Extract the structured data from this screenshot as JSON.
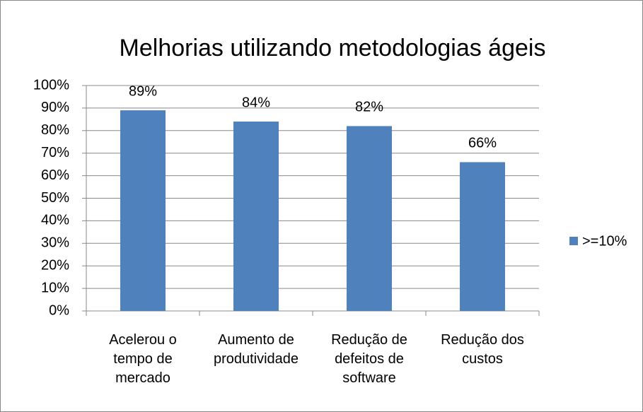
{
  "chart_data": {
    "type": "bar",
    "title": "Melhorias utilizando metodologias ágeis",
    "categories": [
      "Acelerou o tempo de mercado",
      "Aumento de produtividade",
      "Redução de defeitos de software",
      "Redução dos custos"
    ],
    "series": [
      {
        "name": ">=10%",
        "color": "#4f81bd",
        "values": [
          89,
          84,
          82,
          66
        ],
        "value_labels": [
          "89%",
          "84%",
          "82%",
          "66%"
        ]
      }
    ],
    "ylim": [
      0,
      100
    ],
    "yticks": [
      {
        "value": 0,
        "label": "0%"
      },
      {
        "value": 10,
        "label": "10%"
      },
      {
        "value": 20,
        "label": "20%"
      },
      {
        "value": 30,
        "label": "30%"
      },
      {
        "value": 40,
        "label": "40%"
      },
      {
        "value": 50,
        "label": "50%"
      },
      {
        "value": 60,
        "label": "60%"
      },
      {
        "value": 70,
        "label": "70%"
      },
      {
        "value": 80,
        "label": "80%"
      },
      {
        "value": 90,
        "label": "90%"
      },
      {
        "value": 100,
        "label": "100%"
      }
    ],
    "grid": true,
    "legend": "right"
  }
}
